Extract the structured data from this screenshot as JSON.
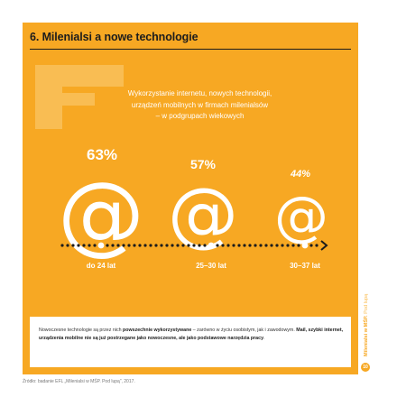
{
  "header": {
    "title": "6. Milenialsi a nowe technologie"
  },
  "subtitle": {
    "line1": "Wykorzystanie internetu, nowych technologii,",
    "line2": "urządzeń mobilnych w firmach milenialsów",
    "line3": "– w podgrupach wiekowych"
  },
  "groups": [
    {
      "percent": "63%",
      "age": "do 24 lat",
      "value": 63
    },
    {
      "percent": "57%",
      "age": "25–30 lat",
      "value": 57
    },
    {
      "percent": "44%",
      "age": "30–37 lat",
      "value": 44
    }
  ],
  "at_symbol": "@",
  "note": {
    "t1": "Nowoczesne technologie są przez nich ",
    "b1": "powszechnie wykorzystywane",
    "t2": " – zarówno w życiu osobistym, jak i zawodowym. ",
    "b2": "Mail, szybki internet, urządzenia mobilne nie są już postrzegane jako nowoczesne, ale jako podstawowe narzędzia pracy",
    "t3": "."
  },
  "source": "Źródło: badanie EFL „Milenialsi w MŚP. Pod lupą”, 2017.",
  "sidebar": {
    "text_bold": "Milenialsi w MŚP.",
    "text_light": "Pod lupą",
    "page_number": "10"
  },
  "colors": {
    "panel": "#f7a823",
    "decoration": "#f9bd53",
    "text_dark": "#1c1c1c",
    "white": "#ffffff"
  },
  "icons": {
    "timeline_arrow": "chevron-right-icon",
    "timeline_dot": "dot-icon"
  }
}
